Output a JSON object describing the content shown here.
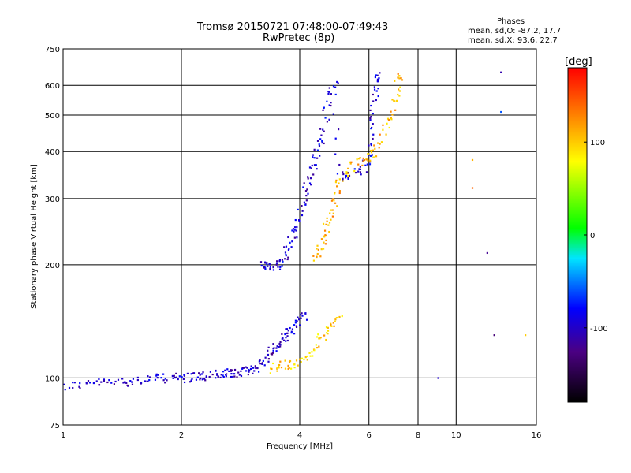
{
  "header": {
    "title_line1": "Tromsø 20150721 07:48:00-07:49:43",
    "title_line2": "RwPretec (8p)",
    "phases_title": "Phases",
    "phases_o": "mean, sd,O: -87.2, 17.7",
    "phases_x": "mean, sd,X:  93.6, 22.7"
  },
  "chart_data": {
    "type": "scatter",
    "xlabel": "Frequency [MHz]",
    "ylabel": "Stationary phase Virtual Height [km]",
    "x_scale": "log",
    "y_scale": "log",
    "xlim": [
      1,
      16
    ],
    "ylim": [
      75,
      750
    ],
    "x_ticks": [
      1,
      2,
      4,
      6,
      8,
      10,
      16
    ],
    "y_ticks": [
      75,
      100,
      200,
      300,
      400,
      500,
      600,
      750
    ],
    "x_grid": [
      2,
      4,
      6,
      8,
      10
    ],
    "y_grid": [
      100,
      200,
      300,
      400,
      500,
      600
    ],
    "colorbar": {
      "label": "[deg]",
      "range": [
        -180,
        180
      ],
      "ticks": [
        100,
        0,
        -100
      ]
    },
    "series": [
      {
        "name": "E-layer O trace (blue)",
        "phase_deg": -100,
        "points": [
          [
            1.0,
            95
          ],
          [
            1.1,
            96
          ],
          [
            1.2,
            97
          ],
          [
            1.3,
            97
          ],
          [
            1.4,
            98
          ],
          [
            1.5,
            98
          ],
          [
            1.6,
            99
          ],
          [
            1.7,
            99
          ],
          [
            1.8,
            100
          ],
          [
            1.9,
            100
          ],
          [
            2.0,
            100
          ],
          [
            2.1,
            100
          ],
          [
            2.2,
            101
          ],
          [
            2.3,
            101
          ],
          [
            2.4,
            102
          ],
          [
            2.5,
            102
          ],
          [
            2.6,
            102
          ],
          [
            2.7,
            103
          ],
          [
            2.8,
            103
          ],
          [
            2.9,
            104
          ],
          [
            3.0,
            105
          ],
          [
            3.1,
            107
          ],
          [
            3.2,
            110
          ],
          [
            3.3,
            113
          ],
          [
            3.4,
            118
          ],
          [
            3.5,
            122
          ],
          [
            3.6,
            126
          ],
          [
            3.7,
            130
          ],
          [
            3.8,
            135
          ],
          [
            3.9,
            140
          ],
          [
            4.0,
            145
          ],
          [
            4.1,
            145
          ]
        ]
      },
      {
        "name": "E-layer X trace (yellow/red)",
        "phase_deg": 100,
        "points": [
          [
            3.4,
            105
          ],
          [
            3.5,
            107
          ],
          [
            3.7,
            108
          ],
          [
            3.9,
            108
          ],
          [
            4.1,
            112
          ],
          [
            4.3,
            118
          ],
          [
            4.5,
            125
          ],
          [
            4.7,
            132
          ],
          [
            4.9,
            140
          ],
          [
            5.1,
            145
          ]
        ]
      },
      {
        "name": "F-layer O trace (blue)",
        "phase_deg": -95,
        "points": [
          [
            3.2,
            200
          ],
          [
            3.3,
            200
          ],
          [
            3.4,
            198
          ],
          [
            3.5,
            200
          ],
          [
            3.6,
            205
          ],
          [
            3.7,
            215
          ],
          [
            3.8,
            230
          ],
          [
            3.9,
            250
          ],
          [
            4.0,
            270
          ],
          [
            4.1,
            300
          ],
          [
            4.2,
            330
          ],
          [
            4.3,
            360
          ],
          [
            4.4,
            390
          ],
          [
            4.5,
            420
          ],
          [
            4.6,
            460
          ],
          [
            4.7,
            520
          ],
          [
            4.8,
            570
          ],
          [
            4.9,
            600
          ],
          [
            5.0,
            340
          ],
          [
            5.3,
            345
          ],
          [
            5.6,
            350
          ],
          [
            5.8,
            360
          ],
          [
            6.0,
            380
          ],
          [
            6.1,
            420
          ],
          [
            6.15,
            500
          ],
          [
            6.2,
            560
          ],
          [
            6.25,
            620
          ],
          [
            6.3,
            650
          ]
        ]
      },
      {
        "name": "F-layer X trace (yellow/red)",
        "phase_deg": 110,
        "points": [
          [
            4.4,
            210
          ],
          [
            4.5,
            220
          ],
          [
            4.6,
            235
          ],
          [
            4.7,
            250
          ],
          [
            4.8,
            270
          ],
          [
            4.9,
            290
          ],
          [
            5.0,
            320
          ],
          [
            5.2,
            350
          ],
          [
            5.5,
            370
          ],
          [
            5.8,
            380
          ],
          [
            6.0,
            390
          ],
          [
            6.3,
            410
          ],
          [
            6.6,
            450
          ],
          [
            6.8,
            500
          ],
          [
            7.0,
            560
          ],
          [
            7.1,
            610
          ],
          [
            7.2,
            640
          ]
        ]
      }
    ],
    "isolated_points": [
      {
        "x": 13.0,
        "y": 650,
        "phase_deg": -110
      },
      {
        "x": 13.0,
        "y": 510,
        "phase_deg": -60
      },
      {
        "x": 11.0,
        "y": 380,
        "phase_deg": 110
      },
      {
        "x": 11.0,
        "y": 320,
        "phase_deg": 140
      },
      {
        "x": 12.0,
        "y": 215,
        "phase_deg": -120
      },
      {
        "x": 12.5,
        "y": 130,
        "phase_deg": -130
      },
      {
        "x": 15.0,
        "y": 130,
        "phase_deg": 100
      },
      {
        "x": 9.0,
        "y": 100,
        "phase_deg": -100
      }
    ]
  }
}
